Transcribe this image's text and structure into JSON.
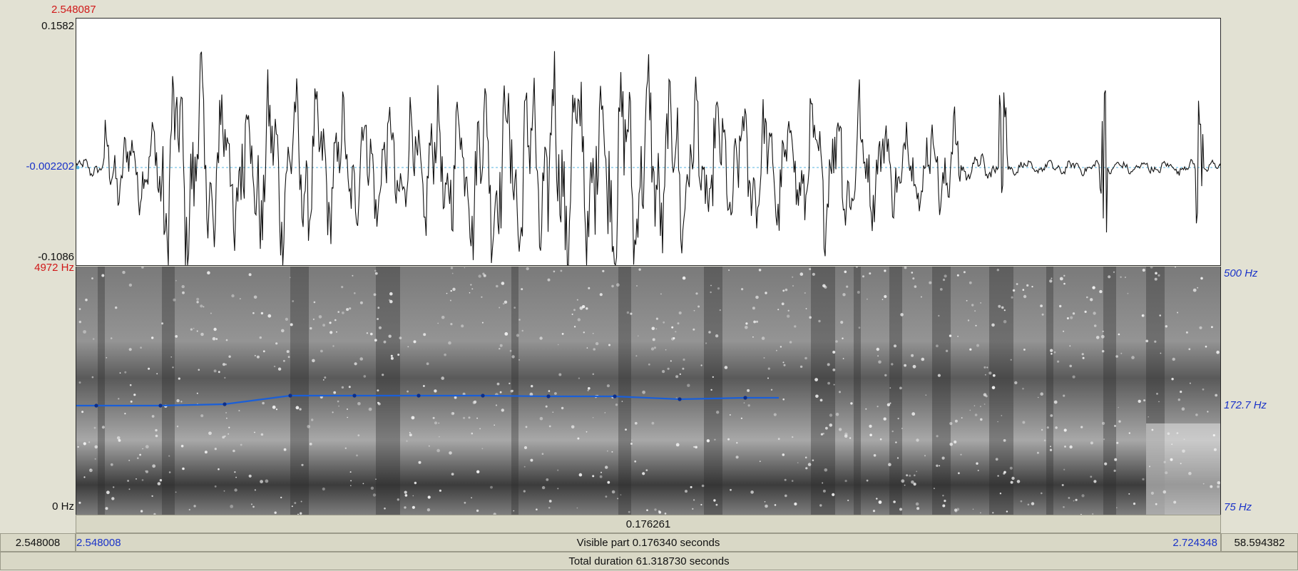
{
  "window": {
    "cursor_time": "2.548087"
  },
  "waveform": {
    "y_max": "0.1582",
    "y_cursor": "-0.002202",
    "y_min": "-0.1086"
  },
  "spectrogram": {
    "freq_top": "4972 Hz",
    "freq_bottom": "0 Hz",
    "pitch_top": "500 Hz",
    "pitch_mid": "172.7 Hz",
    "pitch_bottom": "75 Hz"
  },
  "time_bars": {
    "selection_duration": "0.176261",
    "left_outside": "2.548008",
    "visible_start": "2.548008",
    "visible_part": "Visible part 0.176340 seconds",
    "visible_end": "2.724348",
    "right_outside": "58.594382",
    "total_duration": "Total duration 61.318730 seconds"
  },
  "colors": {
    "background": "#e2e1d3",
    "waveform_line": "#111111",
    "pitch_line": "#1a5fd8",
    "cursor_red": "#d01818",
    "axis_blue": "#1a33c8"
  }
}
